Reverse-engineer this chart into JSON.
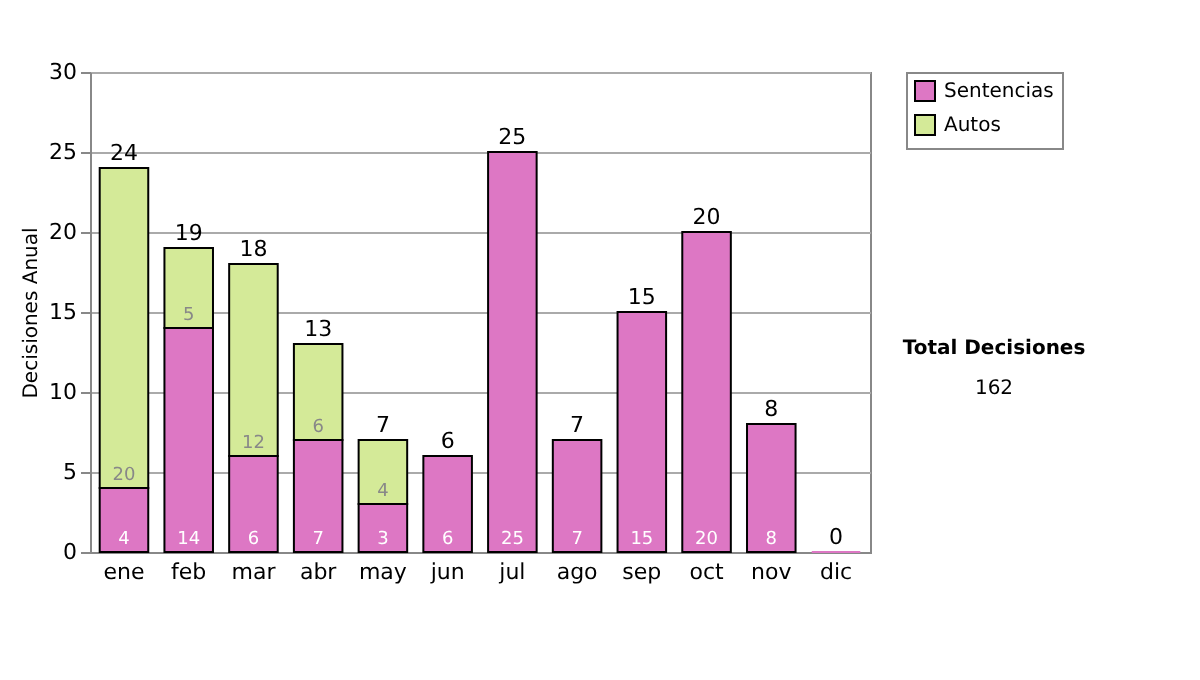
{
  "chart_data": {
    "type": "bar",
    "stacked": true,
    "ylabel": "Decisiones Anual",
    "categories": [
      "ene",
      "feb",
      "mar",
      "abr",
      "may",
      "jun",
      "jul",
      "ago",
      "sep",
      "oct",
      "nov",
      "dic"
    ],
    "series": [
      {
        "name": "Sentencias",
        "color": "#dd77c4",
        "values": [
          4,
          14,
          6,
          7,
          3,
          6,
          25,
          7,
          15,
          20,
          8,
          0
        ],
        "value_labels": [
          "4",
          "14",
          "6",
          "7",
          "3",
          "6",
          "25",
          "7",
          "15",
          "20",
          "8",
          null
        ]
      },
      {
        "name": "Autos",
        "color": "#d4ea98",
        "values": [
          20,
          5,
          12,
          6,
          4,
          null,
          null,
          null,
          null,
          null,
          null,
          null
        ],
        "value_labels": [
          "20",
          "5",
          "12",
          "6",
          "4",
          null,
          null,
          null,
          null,
          null,
          null,
          null
        ]
      }
    ],
    "totals": [
      "24",
      "19",
      "18",
      "13",
      "7",
      "6",
      "25",
      "7",
      "15",
      "20",
      "8",
      "0"
    ],
    "ylim": [
      0,
      30
    ],
    "yticks": [
      0,
      5,
      10,
      15,
      20,
      25,
      30
    ],
    "grid": "y",
    "legend": "right",
    "annotations": [
      "Total Decisiones",
      "162"
    ]
  }
}
